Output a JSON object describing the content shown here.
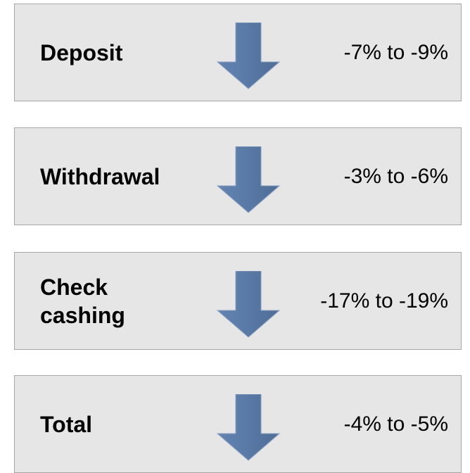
{
  "rows": [
    {
      "label": "Deposit",
      "range": "-7% to -9%"
    },
    {
      "label": "Withdrawal",
      "range": "-3% to -6%"
    },
    {
      "label": "Check\ncashing",
      "range": "-17% to -19%"
    },
    {
      "label": "Total",
      "range": "-4% to -5%"
    }
  ]
}
